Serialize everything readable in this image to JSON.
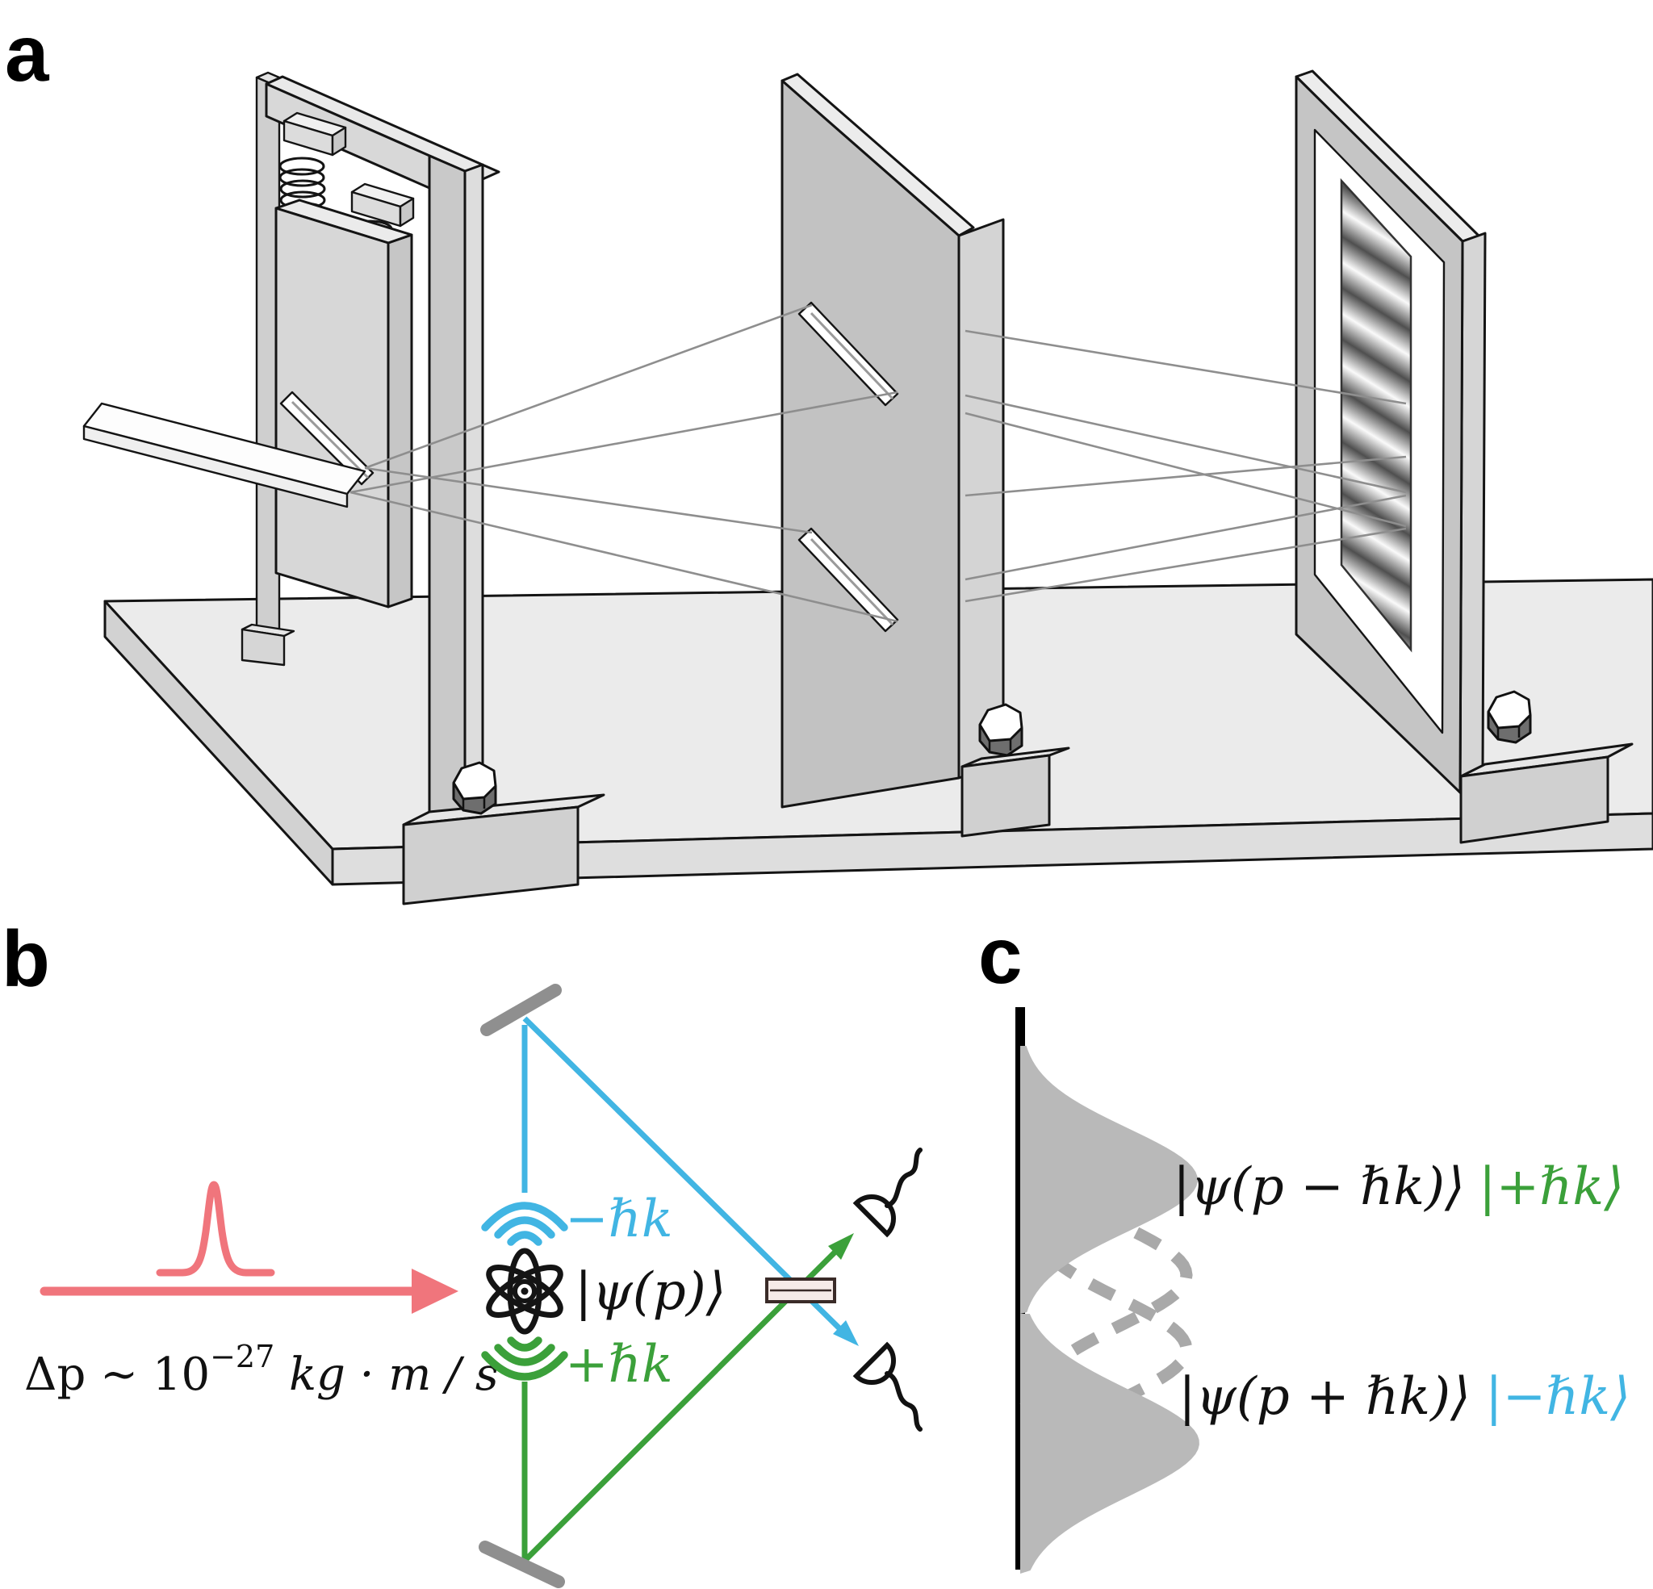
{
  "figure": {
    "panel_a_label": "a",
    "panel_b_label": "b",
    "panel_c_label": "c"
  },
  "panel_b": {
    "momentum_spread_prefix": "Δp ~ 10",
    "momentum_spread_exponent": "−27",
    "momentum_spread_suffix": " kg · m / s",
    "atom_state_label": "|ψ(p)⟩",
    "photon_up_label": "−ℏk",
    "photon_down_label": "+ℏk",
    "colors": {
      "pulse": "#F0757C",
      "cyan": "#41B5E3",
      "green": "#3BA03A"
    }
  },
  "panel_c": {
    "upper_state_black": "|ψ(p − ℏk)⟩",
    "upper_state_ket": "|+ℏk⟩",
    "lower_state_black": "|ψ(p + ℏk)⟩",
    "lower_state_ket": "|−ℏk⟩",
    "colors": {
      "ket_plus": "#3BA03A",
      "ket_minus": "#41B5E3",
      "packet": "#b9b9b9",
      "dashed": "#a9a9a9"
    }
  },
  "icons": {
    "atom": "atom-orbitals-icon",
    "recoil_up": "wifi-arcs-down-icon",
    "recoil_down": "wifi-arcs-up-icon",
    "detector": "photodetector-dome-icon",
    "mirror": "mirror-bar-icon",
    "beamsplitter": "beamsplitter-plate-icon",
    "bolt": "hex-bolt-icon"
  }
}
